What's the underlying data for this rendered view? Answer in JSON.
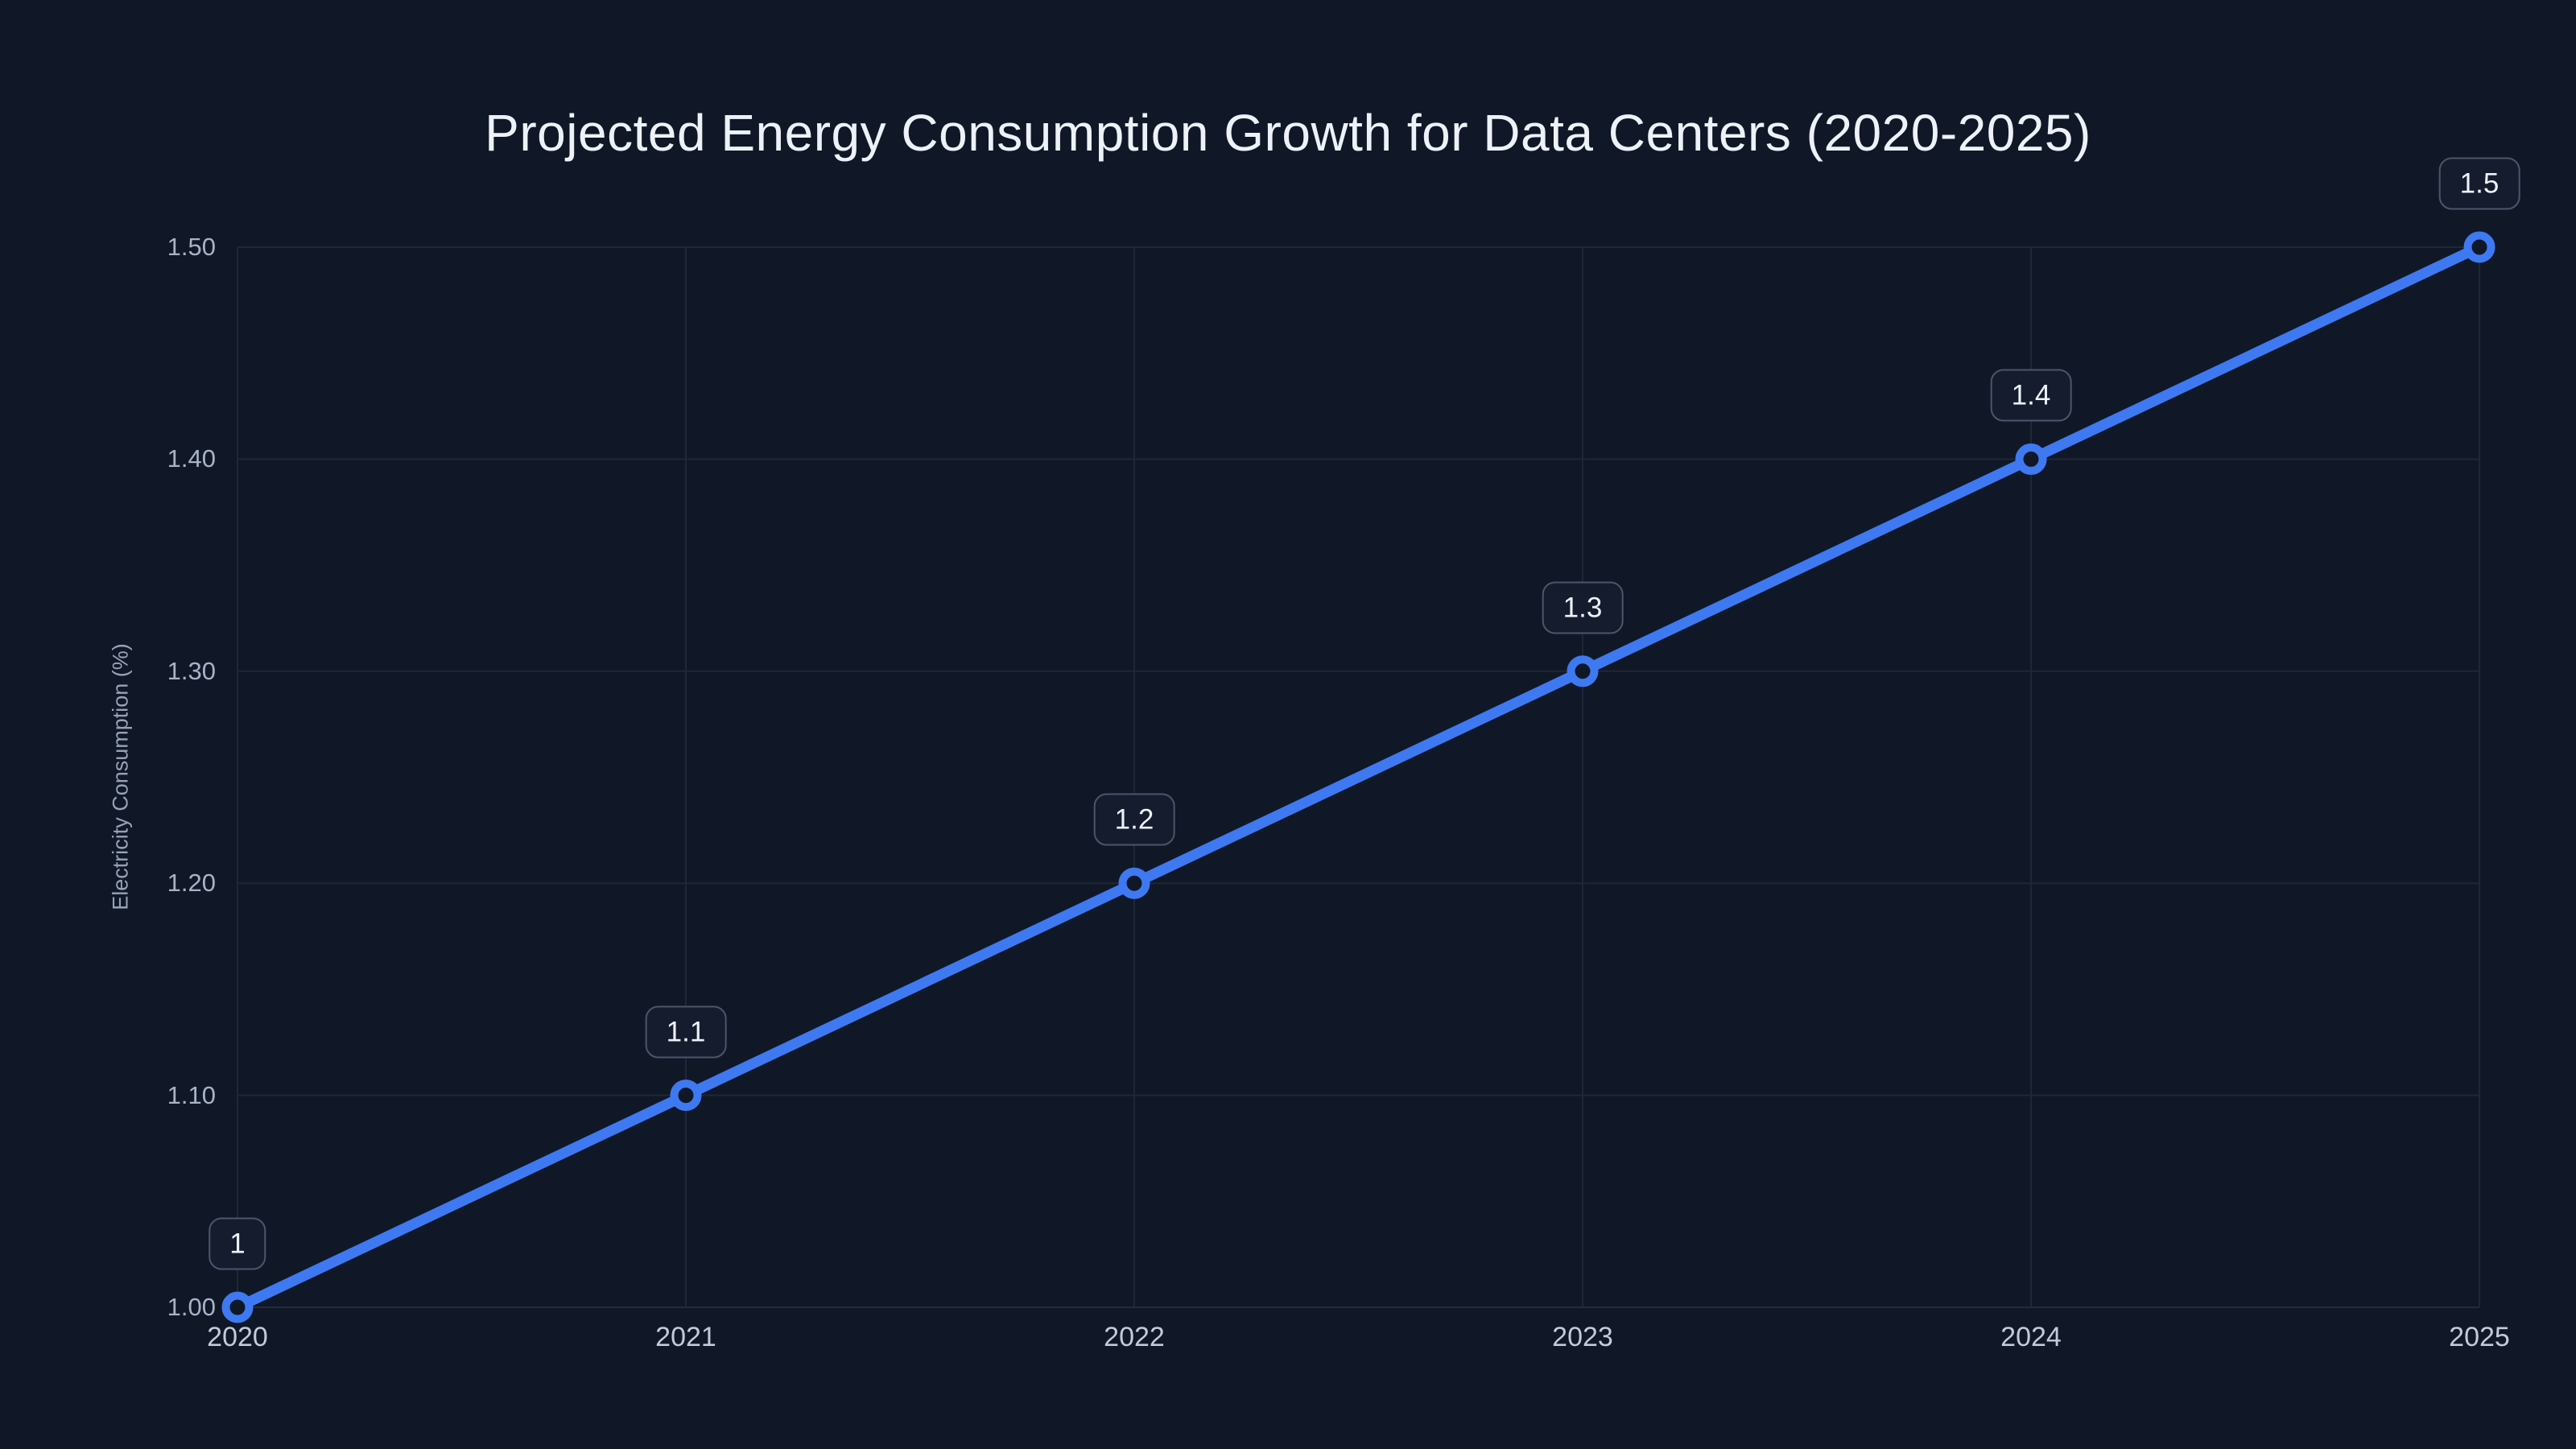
{
  "page": {
    "background": "#101827"
  },
  "chart_data": {
    "type": "line",
    "title": "Projected Energy Consumption Growth for Data Centers (2020-2025)",
    "xlabel": "",
    "ylabel": "Electricity Consumption (%)",
    "x": [
      2020,
      2021,
      2022,
      2023,
      2024,
      2025
    ],
    "y": [
      1.0,
      1.1,
      1.2,
      1.3,
      1.4,
      1.5
    ],
    "point_labels": [
      "1",
      "1.1",
      "1.2",
      "1.3",
      "1.4",
      "1.5"
    ],
    "x_tick_labels": [
      "2020",
      "2021",
      "2022",
      "2023",
      "2024",
      "2025"
    ],
    "y_tick_labels": [
      "1.00",
      "1.10",
      "1.20",
      "1.30",
      "1.40",
      "1.50"
    ],
    "y_ticks": [
      1.0,
      1.1,
      1.2,
      1.3,
      1.4,
      1.5
    ],
    "xlim": [
      2020,
      2025
    ],
    "ylim": [
      1.0,
      1.5
    ],
    "grid": true,
    "legend": false,
    "series_name": "Electricity Consumption",
    "colors": {
      "line": "#3e79f2",
      "marker_stroke": "#3e79f2",
      "marker_fill": "#101827",
      "grid": "#1e2738",
      "baseline": "#232c3e",
      "tick_text": "#a9b3c6",
      "xtick_text": "#c3cbd9",
      "axis_title_text": "#97a2b6",
      "title_text": "#edf2f9",
      "badge_bg": "#151c2e",
      "badge_border": "#4d5568",
      "badge_text": "#edf2f9"
    }
  }
}
